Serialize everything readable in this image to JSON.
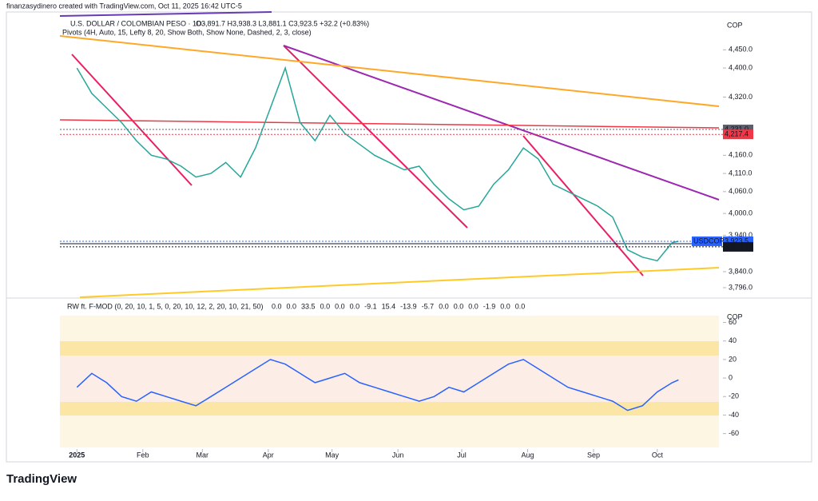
{
  "header": {
    "credit": "finanzasydinero created with TradingView.com, Oct 11, 2025 16:42 UTC-5",
    "brand": "TradingView"
  },
  "chart_data": [
    {
      "type": "line",
      "title": "U.S. DOLLAR / COLOMBIAN PESO · 1D ·",
      "subtitle": "O3,891.7 H3,938.3 L3,881.1 C3,923.5 +32.2 (+0.83%)",
      "legend": "Pivots (4H, Auto, 15, Lefty 8, 20, Show Both, Show None, Dashed, 2, 3, close)",
      "currency": "COP",
      "color": "#26a69a",
      "grid": false,
      "x": [
        1,
        8,
        15,
        22,
        29,
        36,
        43,
        50,
        57,
        64,
        71,
        78,
        85,
        92,
        99,
        106,
        113,
        120,
        127,
        134,
        141,
        148,
        155,
        162,
        169,
        176,
        183,
        190,
        197,
        204,
        211,
        218,
        225,
        232,
        239,
        246,
        253,
        260,
        267,
        274,
        281,
        284
      ],
      "values": [
        4400,
        4330,
        4290,
        4250,
        4200,
        4160,
        4150,
        4130,
        4100,
        4110,
        4140,
        4100,
        4180,
        4290,
        4400,
        4250,
        4200,
        4270,
        4220,
        4190,
        4160,
        4140,
        4120,
        4130,
        4080,
        4040,
        4010,
        4020,
        4080,
        4120,
        4180,
        4150,
        4080,
        4060,
        4040,
        4020,
        3990,
        3900,
        3880,
        3870,
        3920,
        3923.5
      ],
      "xlim": [
        -7,
        303
      ],
      "xticks": [
        {
          "value": 1,
          "label": "2025"
        },
        {
          "value": 32,
          "label": "Feb"
        },
        {
          "value": 60,
          "label": "Mar"
        },
        {
          "value": 91,
          "label": "Apr"
        },
        {
          "value": 121,
          "label": "May"
        },
        {
          "value": 152,
          "label": "Jun"
        },
        {
          "value": 182,
          "label": "Jul"
        },
        {
          "value": 213,
          "label": "Aug"
        },
        {
          "value": 244,
          "label": "Sep"
        },
        {
          "value": 274,
          "label": "Oct"
        }
      ],
      "ylim": [
        3774,
        4543
      ],
      "yticks": [
        {
          "value": 4450,
          "label": "4,450.0"
        },
        {
          "value": 4400,
          "label": "4,400.0"
        },
        {
          "value": 4320,
          "label": "4,320.0"
        },
        {
          "value": 4160,
          "label": "4,160.0"
        },
        {
          "value": 4110,
          "label": "4,110.0"
        },
        {
          "value": 4060,
          "label": "4,060.0"
        },
        {
          "value": 4000,
          "label": "4,000.0"
        },
        {
          "value": 3940,
          "label": "3,940.0"
        },
        {
          "value": 3840,
          "label": "3,840.0"
        },
        {
          "value": 3796,
          "label": "3,796.0"
        }
      ],
      "price_lines": [
        {
          "value": 4231.0,
          "label": "4,231.0",
          "color": "#5d606b"
        },
        {
          "value": 4217.4,
          "label": "4,217.4",
          "color": "#f23645"
        },
        {
          "value": 3923.5,
          "label": "3,923.5",
          "color": "#2962ff",
          "name": "USDCOP"
        },
        {
          "value": 3908.2,
          "label": "3,908.2",
          "color": "#131722"
        }
      ]
    },
    {
      "type": "line",
      "title": "RW ft. F-MOD (0, 20, 10, 1, 5, 0, 20, 10, 12, 2, 20, 10, 21, 50)",
      "readout": [
        "0.0",
        "0.0",
        "33.5",
        "0.0",
        "0.0",
        "0.0",
        "-9.1",
        "15.4",
        "-13.9",
        "-5.7",
        "0.0",
        "0.0",
        "0.0",
        "-1.9",
        "0.0",
        "0.0"
      ],
      "currency": "COP",
      "xlim": [
        -7,
        303
      ],
      "x": [
        1,
        8,
        15,
        22,
        29,
        36,
        43,
        50,
        57,
        64,
        71,
        78,
        85,
        92,
        99,
        106,
        113,
        120,
        127,
        134,
        141,
        148,
        155,
        162,
        169,
        176,
        183,
        190,
        197,
        204,
        211,
        218,
        225,
        232,
        239,
        246,
        253,
        260,
        267,
        274,
        281,
        284
      ],
      "series": [
        {
          "color": "#2962ff",
          "values": [
            -10,
            5,
            -5,
            -20,
            -25,
            -15,
            -20,
            -25,
            -30,
            -20,
            -10,
            0,
            10,
            20,
            15,
            5,
            -5,
            0,
            5,
            -5,
            -10,
            -15,
            -20,
            -25,
            -20,
            -10,
            -15,
            -5,
            5,
            15,
            20,
            10,
            0,
            -10,
            -15,
            -20,
            -25,
            -35,
            -30,
            -15,
            -5,
            -2
          ]
        }
      ],
      "ylim": [
        -75,
        76
      ],
      "yticks": [
        60,
        40,
        20,
        0,
        -20,
        -40,
        -60
      ]
    }
  ]
}
